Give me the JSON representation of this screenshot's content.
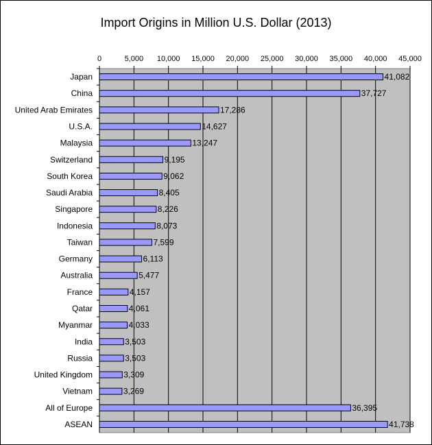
{
  "chart_data": {
    "type": "bar",
    "orientation": "horizontal",
    "title": "Import Origins in Million U.S. Dollar (2013)",
    "xlabel": "",
    "ylabel": "",
    "xlim": [
      0,
      45000
    ],
    "x_ticks": [
      "0",
      "5,000",
      "10,000",
      "15,000",
      "20,000",
      "25,000",
      "30,000",
      "35,000",
      "40,000",
      "45,000"
    ],
    "x_tick_values": [
      0,
      5000,
      10000,
      15000,
      20000,
      25000,
      30000,
      35000,
      40000,
      45000
    ],
    "grid": "vertical",
    "legend": "none",
    "categories": [
      "Japan",
      "China",
      "United Arab Emirates",
      "U.S.A.",
      "Malaysia",
      "Switzerland",
      "South Korea",
      "Saudi Arabia",
      "Singapore",
      "Indonesia",
      "Taiwan",
      "Germany",
      "Australia",
      "France",
      "Qatar",
      "Myanmar",
      "India",
      "Russia",
      "United Kingdom",
      "Vietnam",
      "All of Europe",
      "ASEAN"
    ],
    "values": [
      41082,
      37727,
      17286,
      14627,
      13247,
      9195,
      9062,
      8405,
      8226,
      8073,
      7599,
      6113,
      5477,
      4157,
      4061,
      4033,
      3503,
      3503,
      3309,
      3269,
      36395,
      41738
    ],
    "value_labels": [
      "41,082",
      "37,727",
      "17,286",
      "14,627",
      "13,247",
      "9,195",
      "9,062",
      "8,405",
      "8,226",
      "8,073",
      "7,599",
      "6,113",
      "5,477",
      "4,157",
      "4,061",
      "4,033",
      "3,503",
      "3,503",
      "3,309",
      "3,269",
      "36,395",
      "41,738"
    ],
    "colors": {
      "bar": "#9999ff",
      "plot_background": "#c0c0c0",
      "grid": "#000000"
    }
  }
}
